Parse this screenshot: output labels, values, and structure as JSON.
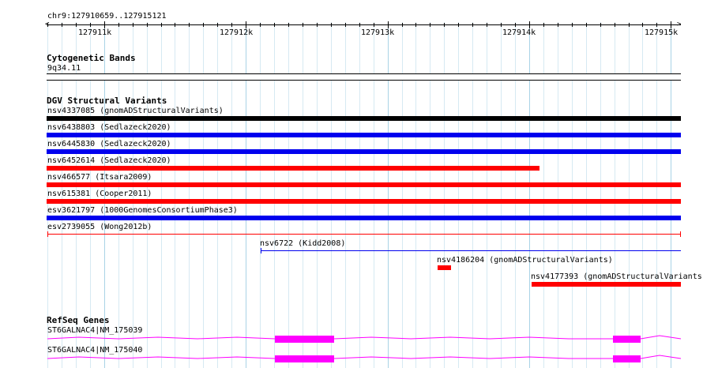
{
  "ruler": {
    "region": "chr9:127910659..127915121",
    "ticks": [
      "127911k",
      "127912k",
      "127913k",
      "127914k",
      "127915k"
    ]
  },
  "tracks": {
    "cyto": {
      "title": "Cytogenetic Bands",
      "band": "9q34.11"
    },
    "dgv": {
      "title": "DGV Structural Variants",
      "features": [
        {
          "label": "nsv4337085 (gnomADStructuralVariants)",
          "color": "#000000"
        },
        {
          "label": "nsv6438803 (Sedlazeck2020)",
          "color": "#0000ee"
        },
        {
          "label": "nsv6445830 (Sedlazeck2020)",
          "color": "#0000ee"
        },
        {
          "label": "nsv6452614 (Sedlazeck2020)",
          "color": "#ff0000"
        },
        {
          "label": "nsv466577 (Itsara2009)",
          "color": "#ff0000"
        },
        {
          "label": "nsv615381 (Cooper2011)",
          "color": "#ff0000"
        },
        {
          "label": "esv3621797 (1000GenomesConsortiumPhase3)",
          "color": "#0000ee"
        },
        {
          "label": "esv2739055 (Wong2012b)",
          "color": "#ff0000"
        },
        {
          "label": "nsv6722 (Kidd2008)",
          "color": "#0000ee"
        },
        {
          "label": "nsv4186204 (gnomADStructuralVariants)",
          "color": "#ff0000"
        },
        {
          "label": "nsv4177393 (gnomADStructuralVariants",
          "color": "#ff0000"
        }
      ]
    },
    "refseq": {
      "title": "RefSeq Genes",
      "color": "#ff00ff",
      "transcripts": [
        {
          "label": "ST6GALNAC4|NM_175039"
        },
        {
          "label": "ST6GALNAC4|NM_175040"
        }
      ]
    }
  }
}
